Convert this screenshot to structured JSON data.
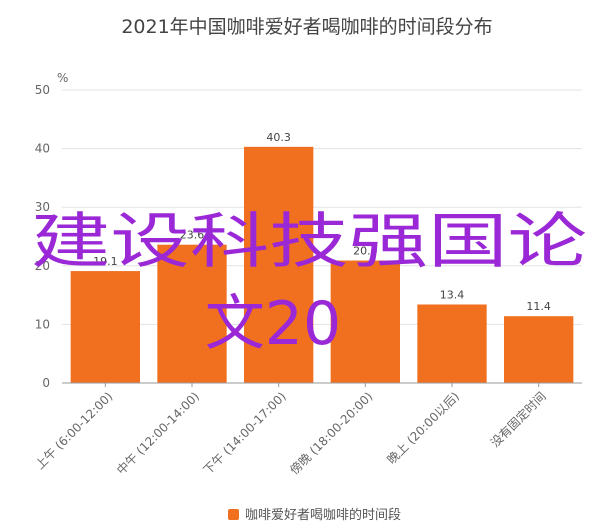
{
  "chart_data": {
    "type": "bar",
    "title": "2021年中国咖啡爱好者喝咖啡的时间段分布",
    "ylabel": "%",
    "ylim": [
      0,
      50
    ],
    "yticks": [
      0,
      10,
      20,
      30,
      40,
      50
    ],
    "grid": true,
    "legend_position": "bottom",
    "categories": [
      "上午 (6:00-12:00)",
      "中午 (12:00-14:00)",
      "下午 (14:00-17:00)",
      "傍晚 (18:00-20:00)",
      "晚上 (20:00以后)",
      "没有固定时间"
    ],
    "series": [
      {
        "name": "咖啡爱好者喝咖啡的时间段",
        "values": [
          19.1,
          23.6,
          40.3,
          20.9,
          13.4,
          11.4
        ],
        "color": "#f07020"
      }
    ],
    "data_labels": [
      "19.1",
      "23.6",
      "40.3",
      "20.9",
      "13.4",
      "11.4"
    ]
  },
  "watermark": {
    "line1": "建设科技强国论",
    "line2": "文20",
    "color": "#9b28d6"
  }
}
